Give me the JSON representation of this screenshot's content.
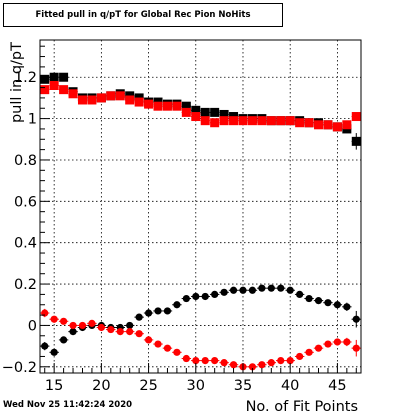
{
  "title": "Fitted pull in q/pT for Global Rec Pion NoHits",
  "timestamp": "Wed Nov 25 11:42:24 2020",
  "chart_data": {
    "type": "scatter",
    "xlabel": "No. of Fit Points",
    "ylabel": "pull in q/pT",
    "xlim": [
      13.5,
      47.5
    ],
    "ylim": [
      -0.23,
      1.38
    ],
    "xticks": [
      15,
      20,
      25,
      30,
      35,
      40,
      45
    ],
    "yticks": [
      -0.2,
      0,
      0.2,
      0.4,
      0.6,
      0.8,
      1,
      1.2
    ],
    "ytick_labels": [
      "−0.2",
      "0",
      "0.2",
      "0.4",
      "0.6",
      "0.8",
      "1",
      "1.2"
    ],
    "grid": true,
    "x": [
      14,
      15,
      16,
      17,
      18,
      19,
      20,
      21,
      22,
      23,
      24,
      25,
      26,
      27,
      28,
      29,
      30,
      31,
      32,
      33,
      34,
      35,
      36,
      37,
      38,
      39,
      40,
      41,
      42,
      43,
      44,
      45,
      46,
      47
    ],
    "series": [
      {
        "color": "#000000",
        "marker": "square",
        "values": [
          1.19,
          1.2,
          1.2,
          1.13,
          1.1,
          1.1,
          1.1,
          1.11,
          1.12,
          1.11,
          1.1,
          1.08,
          1.08,
          1.07,
          1.07,
          1.06,
          1.04,
          1.03,
          1.03,
          1.02,
          1.01,
          1.0,
          1.0,
          1.0,
          0.99,
          0.99,
          0.99,
          0.99,
          0.98,
          0.98,
          0.97,
          0.96,
          0.95,
          0.89
        ],
        "errors": [
          0.02,
          0.01,
          0.01,
          0.01,
          0.01,
          0.01,
          0.01,
          0.01,
          0.01,
          0.01,
          0.01,
          0.01,
          0.01,
          0.01,
          0.01,
          0.01,
          0.01,
          0.01,
          0.01,
          0.01,
          0.01,
          0.01,
          0.01,
          0.01,
          0.01,
          0.01,
          0.01,
          0.01,
          0.01,
          0.01,
          0.01,
          0.01,
          0.02,
          0.04
        ]
      },
      {
        "color": "#ff0000",
        "marker": "square",
        "values": [
          1.14,
          1.16,
          1.14,
          1.12,
          1.09,
          1.09,
          1.1,
          1.11,
          1.11,
          1.09,
          1.08,
          1.07,
          1.06,
          1.06,
          1.06,
          1.03,
          1.01,
          0.99,
          0.98,
          0.99,
          0.99,
          0.99,
          0.99,
          0.99,
          0.99,
          0.99,
          0.99,
          0.98,
          0.98,
          0.97,
          0.97,
          0.96,
          0.97,
          1.01
        ],
        "errors": [
          0.02,
          0.01,
          0.01,
          0.01,
          0.01,
          0.01,
          0.01,
          0.01,
          0.01,
          0.01,
          0.01,
          0.01,
          0.01,
          0.01,
          0.01,
          0.01,
          0.01,
          0.01,
          0.01,
          0.01,
          0.01,
          0.01,
          0.01,
          0.01,
          0.01,
          0.01,
          0.01,
          0.01,
          0.01,
          0.01,
          0.01,
          0.01,
          0.02,
          0.02
        ]
      },
      {
        "color": "#000000",
        "marker": "circle",
        "values": [
          -0.1,
          -0.13,
          -0.07,
          -0.03,
          -0.01,
          0.0,
          0.0,
          -0.01,
          -0.01,
          0.0,
          0.04,
          0.06,
          0.07,
          0.07,
          0.1,
          0.13,
          0.14,
          0.14,
          0.15,
          0.16,
          0.17,
          0.17,
          0.17,
          0.18,
          0.18,
          0.18,
          0.17,
          0.15,
          0.13,
          0.12,
          0.11,
          0.1,
          0.09,
          0.03
        ],
        "errors": [
          0.02,
          0.01,
          0.01,
          0.01,
          0.01,
          0.01,
          0.01,
          0.01,
          0.01,
          0.01,
          0.01,
          0.01,
          0.01,
          0.01,
          0.01,
          0.01,
          0.01,
          0.01,
          0.01,
          0.01,
          0.01,
          0.01,
          0.01,
          0.01,
          0.01,
          0.01,
          0.01,
          0.01,
          0.01,
          0.01,
          0.01,
          0.01,
          0.02,
          0.04
        ]
      },
      {
        "color": "#ff0000",
        "marker": "circle",
        "values": [
          0.06,
          0.03,
          0.02,
          0.0,
          0.0,
          0.01,
          -0.01,
          -0.02,
          -0.03,
          -0.03,
          -0.04,
          -0.07,
          -0.09,
          -0.11,
          -0.13,
          -0.16,
          -0.17,
          -0.17,
          -0.17,
          -0.18,
          -0.19,
          -0.2,
          -0.2,
          -0.19,
          -0.18,
          -0.17,
          -0.17,
          -0.15,
          -0.13,
          -0.11,
          -0.09,
          -0.08,
          -0.08,
          -0.11
        ],
        "errors": [
          0.02,
          0.01,
          0.01,
          0.01,
          0.01,
          0.01,
          0.01,
          0.01,
          0.01,
          0.01,
          0.01,
          0.01,
          0.01,
          0.01,
          0.01,
          0.01,
          0.01,
          0.01,
          0.01,
          0.01,
          0.01,
          0.01,
          0.01,
          0.01,
          0.01,
          0.01,
          0.01,
          0.01,
          0.01,
          0.01,
          0.01,
          0.01,
          0.02,
          0.04
        ]
      }
    ]
  }
}
